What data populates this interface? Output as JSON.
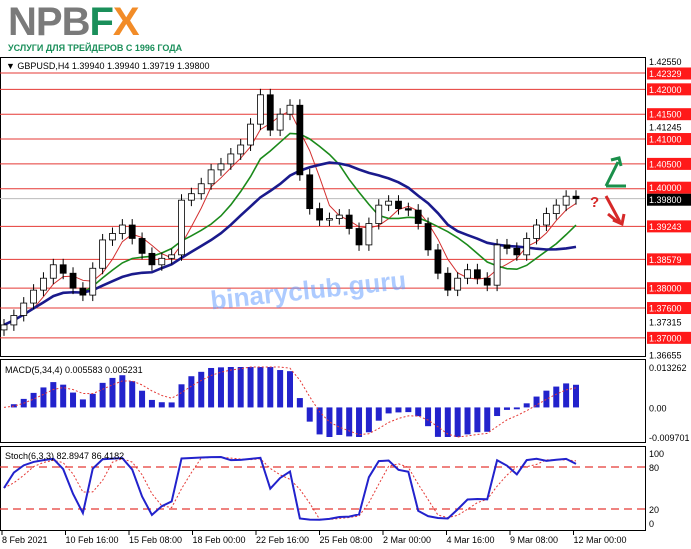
{
  "logo": {
    "np": "NP",
    "b": "B",
    "f": "F",
    "x": "X",
    "tagline": "УСЛУГИ ДЛЯ ТРЕЙДЕРОВ С 1996 ГОДА"
  },
  "colors": {
    "up": "#ffffff",
    "candle": "#000000",
    "level": "#e53935",
    "ma_fast": "#d32f2f",
    "ma_mid": "#1b8a1b",
    "ma_slow": "#1a1a8c",
    "macd": "#2222cc",
    "signal": "#e53935",
    "arrow_up": "#1a8f4a",
    "arrow_down": "#d62828"
  },
  "header": {
    "symbol": "GBPUSD,H4",
    "open": "1.39940",
    "high": "1.39940",
    "low": "1.39719",
    "close": "1.39800"
  },
  "watermark": "binaryclub.guru",
  "annotation": "?",
  "chart_data": {
    "type": "candlestick",
    "symbol": "GBPUSD",
    "timeframe": "H4",
    "ylim": [
      1.36655,
      1.4255
    ],
    "y_ticks": [
      "1.42550",
      "1.41245",
      "1.37315",
      "1.36655"
    ],
    "current_price": "1.39800",
    "levels": [
      "1.42329",
      "1.42000",
      "1.41500",
      "1.41000",
      "1.40500",
      "1.40000",
      "1.39243",
      "1.38579",
      "1.38000",
      "1.37600",
      "1.37000"
    ],
    "x_ticks": [
      "8 Feb 2021",
      "10 Feb 16:00",
      "15 Feb 08:00",
      "18 Feb 00:00",
      "22 Feb 16:00",
      "25 Feb 08:00",
      "2 Mar 00:00",
      "4 Mar 16:00",
      "9 Mar 08:00",
      "12 Mar 00:00"
    ],
    "closes": [
      1.3726,
      1.3745,
      1.377,
      1.3796,
      1.382,
      1.3847,
      1.383,
      1.38,
      1.3786,
      1.384,
      1.3897,
      1.391,
      1.3927,
      1.39,
      1.387,
      1.3847,
      1.386,
      1.3867,
      1.3977,
      1.399,
      1.401,
      1.4038,
      1.405,
      1.407,
      1.4088,
      1.413,
      1.4189,
      1.4118,
      1.415,
      1.4168,
      1.4028,
      1.396,
      1.3937,
      1.394,
      1.3947,
      1.392,
      1.3887,
      1.393,
      1.3967,
      1.3975,
      1.396,
      1.3957,
      1.393,
      1.3877,
      1.383,
      1.3796,
      1.382,
      1.3837,
      1.382,
      1.3806,
      1.3887,
      1.388,
      1.3867,
      1.39,
      1.3927,
      1.395,
      1.3967,
      1.3985,
      1.398
    ],
    "macd": {
      "label": "MACD(5,34,4) 0.005583 0.005231",
      "ylim": [
        -0.009701,
        0.013262
      ],
      "ticks": [
        "0.013262",
        "0.00",
        "-0.009701"
      ]
    },
    "stoch": {
      "label": "Stoch(6,3,3) 82.8947 86.4182",
      "ticks": [
        "100",
        "80",
        "20",
        "0"
      ],
      "levels": [
        80,
        20
      ]
    }
  }
}
